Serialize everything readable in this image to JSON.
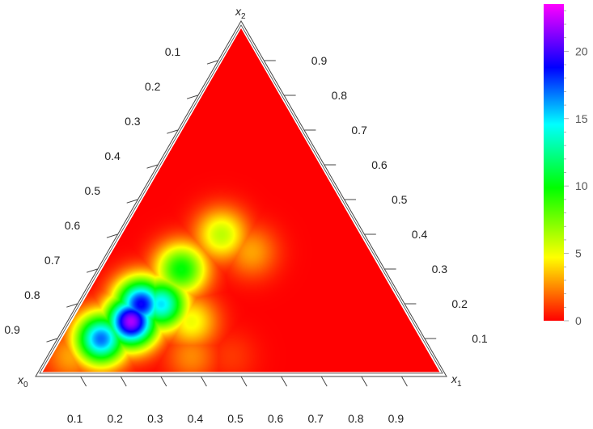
{
  "chart_data": {
    "type": "heatmap",
    "subtype": "ternary",
    "corners": {
      "bottom_left": {
        "base": "x",
        "sub": "0"
      },
      "bottom_right": {
        "base": "x",
        "sub": "1"
      },
      "top": {
        "base": "x",
        "sub": "2"
      }
    },
    "axes": {
      "left": {
        "ticks": [
          "0.1",
          "0.2",
          "0.3",
          "0.4",
          "0.5",
          "0.6",
          "0.7",
          "0.8",
          "0.9"
        ]
      },
      "right": {
        "ticks": [
          "0.9",
          "0.8",
          "0.7",
          "0.6",
          "0.5",
          "0.4",
          "0.3",
          "0.2",
          "0.1"
        ]
      },
      "bottom": {
        "ticks": [
          "0.1",
          "0.2",
          "0.3",
          "0.4",
          "0.5",
          "0.6",
          "0.7",
          "0.8",
          "0.9"
        ]
      }
    },
    "colorbar": {
      "min": 0,
      "max": 23.5,
      "ticks": [
        0,
        5,
        10,
        15,
        20
      ],
      "colormap": [
        "#ff0000",
        "#ff8000",
        "#ffff00",
        "#00ff00",
        "#00ffff",
        "#0000ff",
        "#ff00ff"
      ]
    },
    "field": {
      "background": 0,
      "grid_x1_x2": [
        {
          "x1": 0.05,
          "x2": 0.05,
          "value": 3.0
        },
        {
          "x1": 0.05,
          "x2": 0.15,
          "value": 1.5
        },
        {
          "x1": 0.1,
          "x2": 0.1,
          "value": 17.0
        },
        {
          "x1": 0.15,
          "x2": 0.15,
          "value": 22.0
        },
        {
          "x1": 0.15,
          "x2": 0.2,
          "value": 19.0
        },
        {
          "x1": 0.2,
          "x2": 0.2,
          "value": 15.0
        },
        {
          "x1": 0.2,
          "x2": 0.3,
          "value": 10.0
        },
        {
          "x1": 0.25,
          "x2": 0.4,
          "value": 6.0
        },
        {
          "x1": 0.3,
          "x2": 0.15,
          "value": 5.0
        },
        {
          "x1": 0.35,
          "x2": 0.05,
          "value": 2.5
        },
        {
          "x1": 0.35,
          "x2": 0.35,
          "value": 3.0
        },
        {
          "x1": 0.45,
          "x2": 0.05,
          "value": 1.0
        }
      ]
    }
  }
}
